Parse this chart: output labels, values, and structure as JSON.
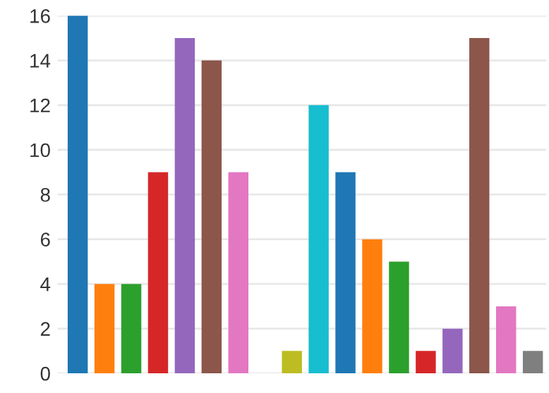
{
  "chart_data": {
    "type": "bar",
    "categories": [
      null,
      null,
      null,
      null,
      null,
      null,
      null,
      null,
      null,
      null,
      null,
      null,
      null,
      null,
      null,
      null,
      null,
      null
    ],
    "values": [
      16,
      4,
      4,
      9,
      15,
      14,
      9,
      0,
      1,
      12,
      9,
      6,
      5,
      1,
      2,
      15,
      3,
      1
    ],
    "colors": [
      "#1f77b4",
      "#ff7f0e",
      "#2ca02c",
      "#d62728",
      "#9467bd",
      "#8c564b",
      "#e377c2",
      "#7f7f7f",
      "#bcbd22",
      "#17becf",
      "#1f77b4",
      "#ff7f0e",
      "#2ca02c",
      "#d62728",
      "#9467bd",
      "#8c564b",
      "#e377c2",
      "#7f7f7f"
    ],
    "ylim": [
      0,
      16
    ],
    "yticks": [
      0,
      2,
      4,
      6,
      8,
      10,
      12,
      14,
      16
    ],
    "grid": "y",
    "tick_labels": "y"
  }
}
